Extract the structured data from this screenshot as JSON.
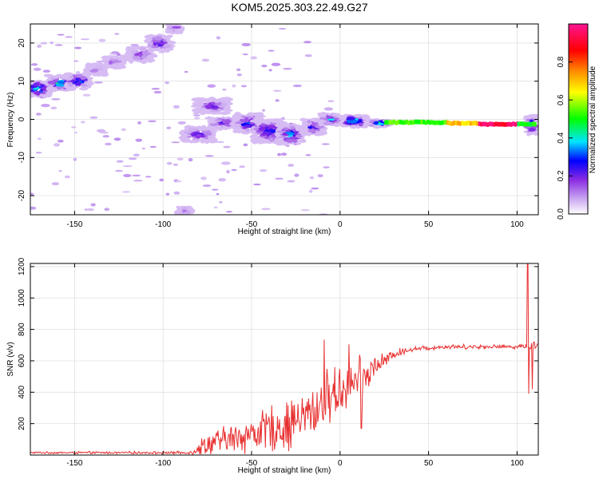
{
  "title": "KOM5.2025.303.22.49.G27",
  "chart_data": [
    {
      "type": "heatmap",
      "xlabel": "Height of straight line (km)",
      "ylabel": "Frequency (Hz)",
      "xlim": [
        -175,
        112
      ],
      "ylim": [
        -25,
        25
      ],
      "xticks": [
        -150,
        -100,
        -50,
        0,
        50,
        100
      ],
      "yticks": [
        -20,
        -10,
        0,
        10,
        20
      ],
      "colorbar": {
        "label": "Normalized spectral amplitude",
        "range": [
          0,
          1
        ],
        "ticks": [
          0.0,
          0.2,
          0.4,
          0.6,
          0.8
        ],
        "colors": [
          "#ffffff",
          "#c9a6f0",
          "#8a2be2",
          "#0000ff",
          "#00e5ff",
          "#00ff00",
          "#ffff00",
          "#ff8c00",
          "#ff0000",
          "#ff1493"
        ]
      },
      "clusters": [
        {
          "x": -170,
          "y": 8,
          "w": 14,
          "h": 4,
          "amp": 0.45
        },
        {
          "x": -158,
          "y": 9.5,
          "w": 14,
          "h": 4,
          "amp": 0.4
        },
        {
          "x": -148,
          "y": 10,
          "w": 14,
          "h": 4,
          "amp": 0.35
        },
        {
          "x": -138,
          "y": 13,
          "w": 10,
          "h": 3,
          "amp": 0.12
        },
        {
          "x": -128,
          "y": 15,
          "w": 12,
          "h": 3,
          "amp": 0.15
        },
        {
          "x": -113,
          "y": 17,
          "w": 14,
          "h": 4,
          "amp": 0.22
        },
        {
          "x": -102,
          "y": 20,
          "w": 14,
          "h": 4,
          "amp": 0.25
        },
        {
          "x": -93,
          "y": 24,
          "w": 8,
          "h": 3,
          "amp": 0.15
        },
        {
          "x": -88,
          "y": -24,
          "w": 8,
          "h": 2,
          "amp": 0.18
        },
        {
          "x": -72,
          "y": 3.5,
          "w": 20,
          "h": 4,
          "amp": 0.2
        },
        {
          "x": -80,
          "y": -4,
          "w": 18,
          "h": 4,
          "amp": 0.25
        },
        {
          "x": -66,
          "y": -1,
          "w": 16,
          "h": 3,
          "amp": 0.22
        },
        {
          "x": -52,
          "y": -1,
          "w": 16,
          "h": 5,
          "amp": 0.3
        },
        {
          "x": -40,
          "y": -3,
          "w": 18,
          "h": 6,
          "amp": 0.32
        },
        {
          "x": -28,
          "y": -4,
          "w": 14,
          "h": 5,
          "amp": 0.35
        },
        {
          "x": -15,
          "y": -2,
          "w": 12,
          "h": 4,
          "amp": 0.3
        },
        {
          "x": -5,
          "y": 0,
          "w": 12,
          "h": 3,
          "amp": 0.35
        },
        {
          "x": 8,
          "y": -0.5,
          "w": 14,
          "h": 3,
          "amp": 0.45
        },
        {
          "x": 22,
          "y": -1,
          "w": 12,
          "h": 2,
          "amp": 0.5
        },
        {
          "x": 108,
          "y": -1.5,
          "w": 6,
          "h": 5,
          "amp": 0.35
        }
      ],
      "line_segments": [
        {
          "x0": 25,
          "x1": 60,
          "y": -0.8,
          "amp": 0.55
        },
        {
          "x0": 60,
          "x1": 78,
          "y": -1.0,
          "amp": 0.7
        },
        {
          "x0": 78,
          "x1": 100,
          "y": -1.3,
          "amp": 0.95
        },
        {
          "x0": 100,
          "x1": 110,
          "y": -1.3,
          "amp": 0.5
        }
      ]
    },
    {
      "type": "line",
      "xlabel": "Height of straight line (km)",
      "ylabel": "SNR (v/v)",
      "xlim": [
        -175,
        112
      ],
      "ylim": [
        0,
        1220
      ],
      "xticks": [
        -150,
        -100,
        -50,
        0,
        50,
        100
      ],
      "yticks": [
        200,
        400,
        600,
        800,
        1000,
        1200
      ],
      "color": "#e83030",
      "profile": [
        {
          "x": -175,
          "y": 15
        },
        {
          "x": -85,
          "y": 15
        },
        {
          "x": -75,
          "y": 70
        },
        {
          "x": -60,
          "y": 110
        },
        {
          "x": -45,
          "y": 150
        },
        {
          "x": -30,
          "y": 190
        },
        {
          "x": -20,
          "y": 240
        },
        {
          "x": -10,
          "y": 330
        },
        {
          "x": 0,
          "y": 420
        },
        {
          "x": 10,
          "y": 470
        },
        {
          "x": 20,
          "y": 560
        },
        {
          "x": 30,
          "y": 640
        },
        {
          "x": 40,
          "y": 675
        },
        {
          "x": 60,
          "y": 690
        },
        {
          "x": 100,
          "y": 690
        },
        {
          "x": 112,
          "y": 700
        }
      ],
      "noise": [
        {
          "x": -175,
          "a": 6
        },
        {
          "x": -85,
          "a": 8
        },
        {
          "x": -78,
          "a": 60
        },
        {
          "x": -60,
          "a": 90
        },
        {
          "x": -40,
          "a": 130
        },
        {
          "x": -25,
          "a": 160
        },
        {
          "x": -10,
          "a": 170
        },
        {
          "x": 5,
          "a": 140
        },
        {
          "x": 15,
          "a": 120
        },
        {
          "x": 25,
          "a": 40
        },
        {
          "x": 40,
          "a": 15
        },
        {
          "x": 100,
          "a": 12
        },
        {
          "x": 112,
          "a": 30
        }
      ],
      "spikes": [
        {
          "x": -9,
          "y": 735
        },
        {
          "x": 5,
          "y": 705
        },
        {
          "x": 12,
          "y": 170
        },
        {
          "x": 106,
          "y": 1215
        },
        {
          "x": 106.6,
          "y": 390
        },
        {
          "x": 108.5,
          "y": 420
        }
      ]
    }
  ]
}
